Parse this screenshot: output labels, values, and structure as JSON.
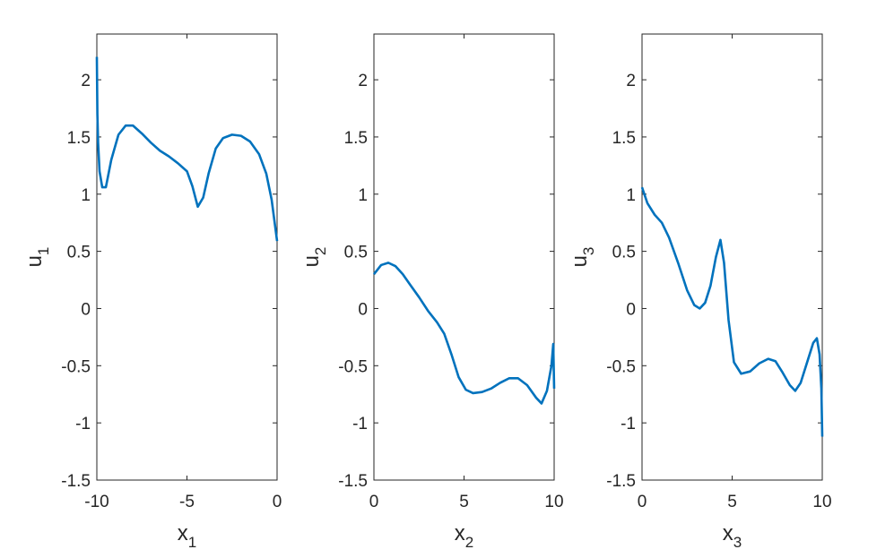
{
  "chart_data": [
    {
      "type": "line",
      "xlabel": {
        "base": "x",
        "subscript": "1"
      },
      "ylabel": {
        "base": "u",
        "subscript": "1"
      },
      "xlim": [
        -10,
        0
      ],
      "xticks": [
        -10,
        -5,
        0
      ],
      "ylim": [
        -1.5,
        2.4
      ],
      "yticks": [
        -1.5,
        -1,
        -0.5,
        0,
        0.5,
        1,
        1.5,
        2
      ],
      "color": "#0072bd",
      "x": [
        -10,
        -9.97,
        -9.93,
        -9.85,
        -9.7,
        -9.5,
        -9.2,
        -8.8,
        -8.4,
        -8.0,
        -7.5,
        -7,
        -6.5,
        -6,
        -5.5,
        -5,
        -4.7,
        -4.4,
        -4.1,
        -3.8,
        -3.4,
        -3,
        -2.5,
        -2,
        -1.5,
        -1,
        -0.6,
        -0.3,
        0
      ],
      "values": [
        2.2,
        1.7,
        1.45,
        1.2,
        1.06,
        1.06,
        1.3,
        1.52,
        1.6,
        1.6,
        1.53,
        1.45,
        1.38,
        1.33,
        1.27,
        1.2,
        1.07,
        0.89,
        0.97,
        1.18,
        1.4,
        1.49,
        1.52,
        1.51,
        1.46,
        1.35,
        1.18,
        0.95,
        0.59
      ]
    },
    {
      "type": "line",
      "xlabel": {
        "base": "x",
        "subscript": "2"
      },
      "ylabel": {
        "base": "u",
        "subscript": "2"
      },
      "xlim": [
        0,
        10
      ],
      "xticks": [
        0,
        5,
        10
      ],
      "ylim": [
        -1.5,
        2.4
      ],
      "yticks": [
        -1.5,
        -1,
        -0.5,
        0,
        0.5,
        1,
        1.5,
        2
      ],
      "color": "#0072bd",
      "x": [
        0,
        0.4,
        0.8,
        1.2,
        1.6,
        2,
        2.5,
        3,
        3.5,
        3.9,
        4.3,
        4.7,
        5.1,
        5.5,
        6,
        6.5,
        7,
        7.5,
        8,
        8.5,
        9,
        9.3,
        9.6,
        9.85,
        9.95,
        10
      ],
      "values": [
        0.3,
        0.38,
        0.4,
        0.37,
        0.3,
        0.21,
        0.1,
        -0.02,
        -0.12,
        -0.22,
        -0.4,
        -0.6,
        -0.71,
        -0.74,
        -0.73,
        -0.7,
        -0.65,
        -0.61,
        -0.61,
        -0.67,
        -0.78,
        -0.83,
        -0.72,
        -0.5,
        -0.31,
        -0.7
      ]
    },
    {
      "type": "line",
      "xlabel": {
        "base": "x",
        "subscript": "3"
      },
      "ylabel": {
        "base": "u",
        "subscript": "3"
      },
      "xlim": [
        0,
        10
      ],
      "xticks": [
        0,
        5,
        10
      ],
      "ylim": [
        -1.5,
        2.4
      ],
      "yticks": [
        -1.5,
        -1,
        -0.5,
        0,
        0.5,
        1,
        1.5,
        2
      ],
      "color": "#0072bd",
      "x": [
        0,
        0.3,
        0.7,
        1.1,
        1.5,
        2,
        2.5,
        2.9,
        3.2,
        3.5,
        3.8,
        4.1,
        4.35,
        4.55,
        4.8,
        5.1,
        5.5,
        6,
        6.5,
        7,
        7.4,
        7.8,
        8.2,
        8.5,
        8.8,
        9.2,
        9.5,
        9.7,
        9.85,
        9.95,
        10
      ],
      "values": [
        1.06,
        0.92,
        0.82,
        0.75,
        0.62,
        0.4,
        0.16,
        0.03,
        0.0,
        0.05,
        0.2,
        0.45,
        0.6,
        0.4,
        -0.1,
        -0.47,
        -0.57,
        -0.55,
        -0.48,
        -0.44,
        -0.46,
        -0.56,
        -0.67,
        -0.72,
        -0.65,
        -0.45,
        -0.3,
        -0.26,
        -0.4,
        -0.7,
        -1.12
      ]
    }
  ]
}
